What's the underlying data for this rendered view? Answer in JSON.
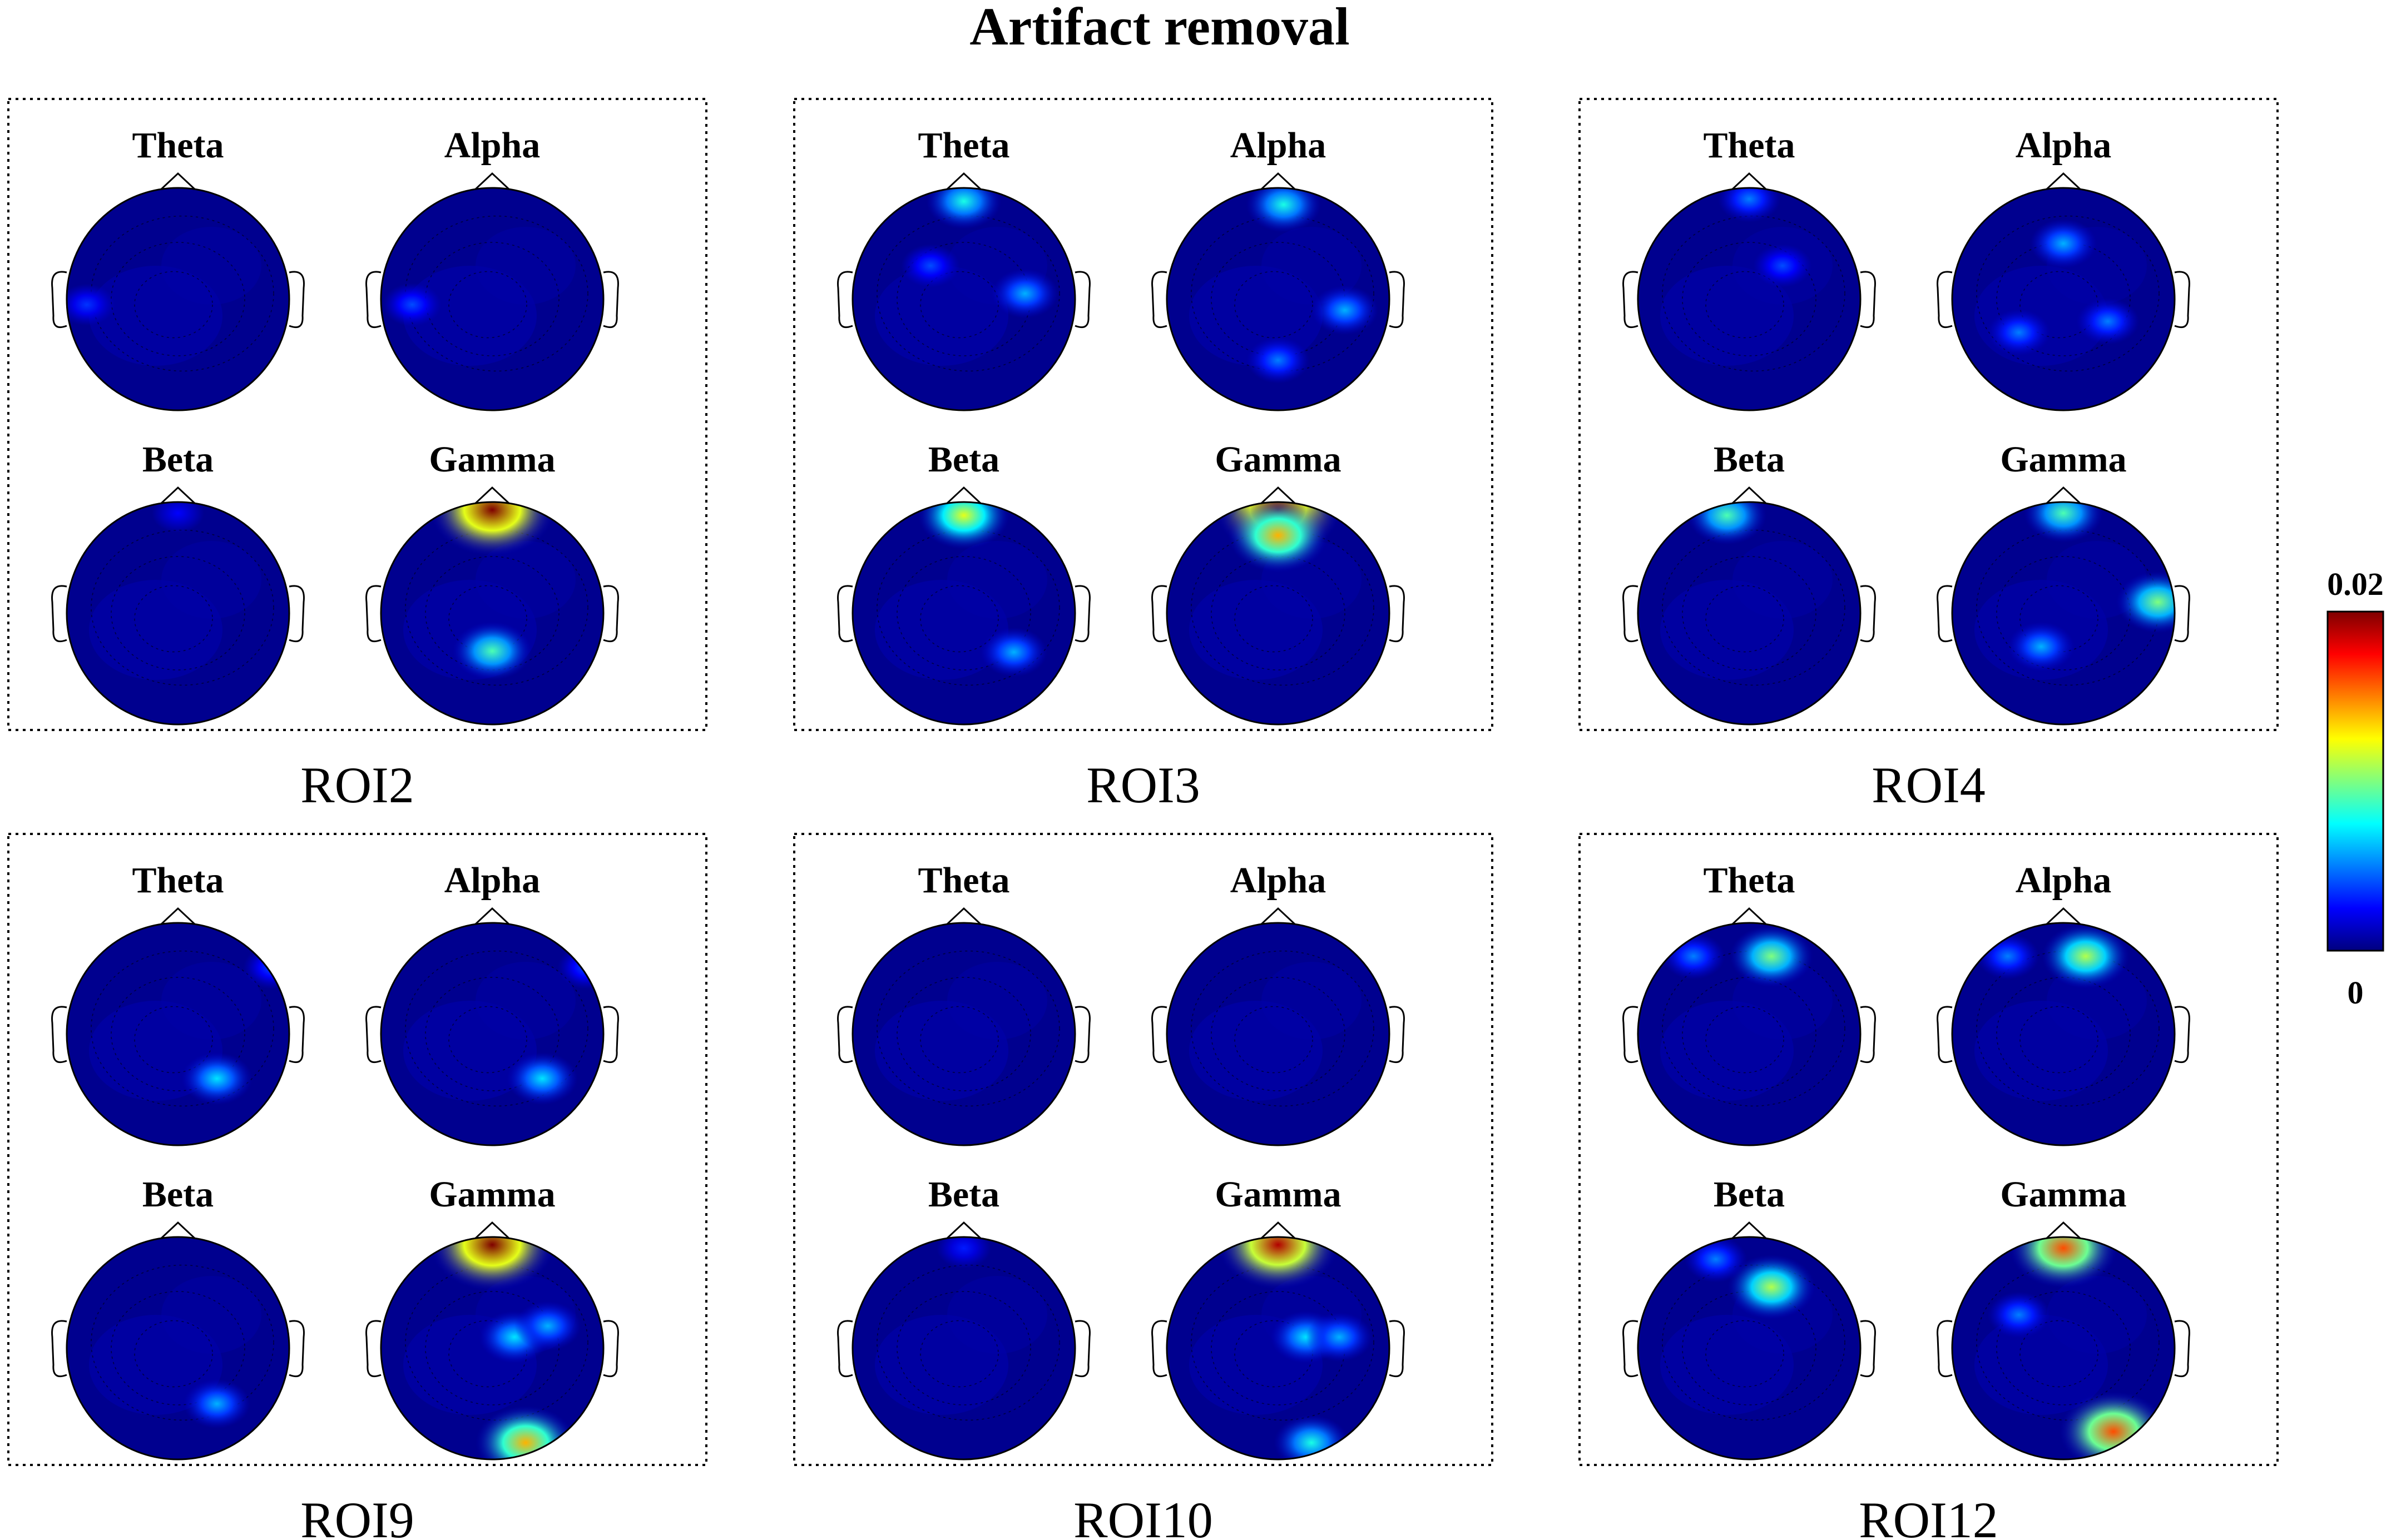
{
  "chart_data": {
    "type": "heatmap",
    "title": "Artifact removal",
    "bands": [
      "Theta",
      "Alpha",
      "Beta",
      "Gamma"
    ],
    "colorbar": {
      "min": 0,
      "max": 0.02,
      "min_label": "0",
      "max_label": "0.02",
      "colormap": "jet",
      "colors": [
        "#00007f",
        "#0000ff",
        "#007fff",
        "#00ffff",
        "#7fff7f",
        "#ffff00",
        "#ff7f00",
        "#ff0000",
        "#7f0000"
      ]
    },
    "panels": [
      {
        "roi": "ROI2",
        "maps": [
          {
            "band": "Theta",
            "hotspots": [
              {
                "x": -0.82,
                "y": -0.05,
                "value": 0.0035
              }
            ]
          },
          {
            "band": "Alpha",
            "hotspots": [
              {
                "x": -0.72,
                "y": -0.05,
                "value": 0.004
              }
            ]
          },
          {
            "band": "Beta",
            "hotspots": [
              {
                "x": 0.0,
                "y": 0.9,
                "value": 0.0025
              }
            ]
          },
          {
            "band": "Gamma",
            "hotspots": [
              {
                "x": 0.0,
                "y": 0.93,
                "value": 0.02
              },
              {
                "x": 0.0,
                "y": -0.34,
                "value": 0.009
              }
            ]
          }
        ]
      },
      {
        "roi": "ROI3",
        "maps": [
          {
            "band": "Theta",
            "hotspots": [
              {
                "x": 0.0,
                "y": 0.88,
                "value": 0.008
              },
              {
                "x": 0.55,
                "y": 0.05,
                "value": 0.006
              },
              {
                "x": -0.3,
                "y": 0.3,
                "value": 0.004
              }
            ]
          },
          {
            "band": "Alpha",
            "hotspots": [
              {
                "x": 0.05,
                "y": 0.85,
                "value": 0.008
              },
              {
                "x": 0.6,
                "y": -0.1,
                "value": 0.006
              },
              {
                "x": 0.0,
                "y": -0.55,
                "value": 0.005
              }
            ]
          },
          {
            "band": "Beta",
            "hotspots": [
              {
                "x": 0.0,
                "y": 0.88,
                "value": 0.012
              },
              {
                "x": 0.45,
                "y": -0.35,
                "value": 0.006
              }
            ]
          },
          {
            "band": "Gamma",
            "hotspots": [
              {
                "x": 0.0,
                "y": 0.93,
                "value": 0.02
              },
              {
                "x": 0.0,
                "y": 0.7,
                "value": 0.014
              }
            ]
          }
        ]
      },
      {
        "roi": "ROI4",
        "maps": [
          {
            "band": "Theta",
            "hotspots": [
              {
                "x": 0.0,
                "y": 0.9,
                "value": 0.005
              },
              {
                "x": 0.3,
                "y": 0.3,
                "value": 0.004
              }
            ]
          },
          {
            "band": "Alpha",
            "hotspots": [
              {
                "x": 0.0,
                "y": 0.5,
                "value": 0.006
              },
              {
                "x": 0.4,
                "y": -0.2,
                "value": 0.005
              },
              {
                "x": -0.4,
                "y": -0.3,
                "value": 0.005
              }
            ]
          },
          {
            "band": "Beta",
            "hotspots": [
              {
                "x": -0.2,
                "y": 0.88,
                "value": 0.009
              }
            ]
          },
          {
            "band": "Gamma",
            "hotspots": [
              {
                "x": 0.0,
                "y": 0.9,
                "value": 0.009
              },
              {
                "x": 0.85,
                "y": 0.1,
                "value": 0.01
              },
              {
                "x": -0.2,
                "y": -0.3,
                "value": 0.006
              }
            ]
          }
        ]
      },
      {
        "roi": "ROI9",
        "maps": [
          {
            "band": "Theta",
            "hotspots": [
              {
                "x": 0.35,
                "y": -0.4,
                "value": 0.007
              },
              {
                "x": 0.85,
                "y": 0.6,
                "value": 0.004
              }
            ]
          },
          {
            "band": "Alpha",
            "hotspots": [
              {
                "x": 0.45,
                "y": -0.4,
                "value": 0.007
              },
              {
                "x": 0.85,
                "y": 0.6,
                "value": 0.004
              }
            ]
          },
          {
            "band": "Beta",
            "hotspots": [
              {
                "x": 0.35,
                "y": -0.5,
                "value": 0.006
              }
            ]
          },
          {
            "band": "Gamma",
            "hotspots": [
              {
                "x": 0.0,
                "y": 0.93,
                "value": 0.02
              },
              {
                "x": 0.3,
                "y": -0.85,
                "value": 0.014
              },
              {
                "x": 0.2,
                "y": 0.1,
                "value": 0.007
              },
              {
                "x": 0.5,
                "y": 0.2,
                "value": 0.006
              }
            ]
          }
        ]
      },
      {
        "roi": "ROI10",
        "maps": [
          {
            "band": "Theta",
            "hotspots": []
          },
          {
            "band": "Alpha",
            "hotspots": []
          },
          {
            "band": "Beta",
            "hotspots": [
              {
                "x": 0.0,
                "y": 0.9,
                "value": 0.003
              }
            ]
          },
          {
            "band": "Gamma",
            "hotspots": [
              {
                "x": 0.0,
                "y": 0.93,
                "value": 0.019
              },
              {
                "x": 0.25,
                "y": 0.1,
                "value": 0.007
              },
              {
                "x": 0.55,
                "y": 0.1,
                "value": 0.006
              },
              {
                "x": 0.3,
                "y": -0.85,
                "value": 0.008
              }
            ]
          }
        ]
      },
      {
        "roi": "ROI12",
        "maps": [
          {
            "band": "Theta",
            "hotspots": [
              {
                "x": 0.2,
                "y": 0.7,
                "value": 0.01
              },
              {
                "x": -0.5,
                "y": 0.7,
                "value": 0.005
              }
            ]
          },
          {
            "band": "Alpha",
            "hotspots": [
              {
                "x": 0.2,
                "y": 0.7,
                "value": 0.011
              },
              {
                "x": -0.5,
                "y": 0.7,
                "value": 0.005
              }
            ]
          },
          {
            "band": "Beta",
            "hotspots": [
              {
                "x": 0.2,
                "y": 0.55,
                "value": 0.011
              },
              {
                "x": -0.3,
                "y": 0.8,
                "value": 0.005
              }
            ]
          },
          {
            "band": "Gamma",
            "hotspots": [
              {
                "x": 0.0,
                "y": 0.9,
                "value": 0.016
              },
              {
                "x": 0.45,
                "y": -0.75,
                "value": 0.016
              },
              {
                "x": -0.4,
                "y": 0.3,
                "value": 0.005
              }
            ]
          }
        ]
      }
    ]
  }
}
